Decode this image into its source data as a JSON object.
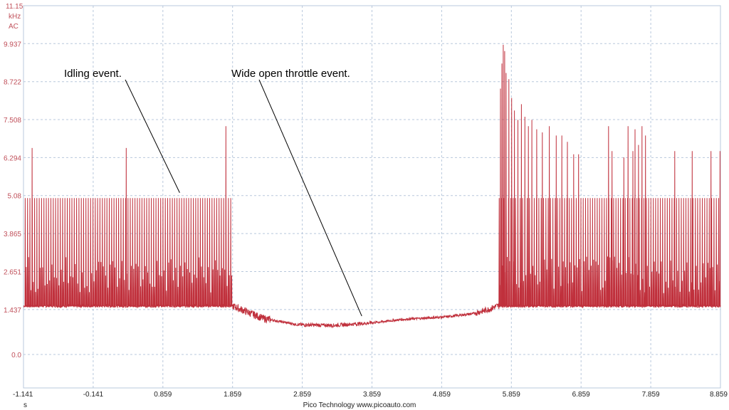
{
  "chart_data": {
    "type": "line",
    "title": "",
    "y_unit_lines": [
      "11.15",
      "kHz",
      "AC"
    ],
    "y_ticks": [
      "9.937",
      "8.722",
      "7.508",
      "6.294",
      "5.08",
      "3.865",
      "2.651",
      "1.437",
      "0.0"
    ],
    "y_tick_values": [
      9.937,
      8.722,
      7.508,
      6.294,
      5.08,
      3.865,
      2.651,
      1.437,
      0.0
    ],
    "x_ticks": [
      "-1.141",
      "-0.141",
      "0.859",
      "1.859",
      "2.859",
      "3.859",
      "4.859",
      "5.859",
      "6.859",
      "7.859",
      "8.859"
    ],
    "x_tick_values": [
      -1.141,
      -0.141,
      0.859,
      1.859,
      2.859,
      3.859,
      4.859,
      5.859,
      6.859,
      7.859,
      8.859
    ],
    "xlabel": "s",
    "xlim": [
      -1.141,
      8.859
    ],
    "ylim": [
      -1.07,
      11.15
    ],
    "grid": true,
    "line_color": "#c0303c",
    "grid_color": "#b8c8dc",
    "series": [
      {
        "baseline": [
          [
            -1.141,
            1.55
          ],
          [
            1.859,
            1.55
          ],
          [
            2.3,
            1.15
          ],
          [
            2.8,
            0.95
          ],
          [
            3.3,
            0.93
          ],
          [
            3.8,
            1.0
          ],
          [
            4.3,
            1.12
          ],
          [
            4.9,
            1.2
          ],
          [
            5.3,
            1.3
          ],
          [
            5.55,
            1.45
          ],
          [
            5.65,
            1.55
          ],
          [
            8.859,
            1.55
          ]
        ],
        "regular_spikes": [
          {
            "x_start": -1.12,
            "x_end": 1.84,
            "period": 0.0335,
            "peak": 5.0
          },
          {
            "x_start": 5.68,
            "x_end": 8.84,
            "period": 0.0335,
            "peak": 5.0
          }
        ],
        "tall_spikes": [
          [
            -1.02,
            6.6
          ],
          [
            0.33,
            6.6
          ],
          [
            1.76,
            7.3
          ],
          [
            5.7,
            8.5
          ],
          [
            5.72,
            9.3
          ],
          [
            5.74,
            9.9
          ],
          [
            5.76,
            9.7
          ],
          [
            5.78,
            9.0
          ],
          [
            5.82,
            8.8
          ],
          [
            5.86,
            8.2
          ],
          [
            5.9,
            7.8
          ],
          [
            5.95,
            7.5
          ],
          [
            6.0,
            8.0
          ],
          [
            6.05,
            7.6
          ],
          [
            6.1,
            7.3
          ],
          [
            6.15,
            7.5
          ],
          [
            6.22,
            7.2
          ],
          [
            6.3,
            7.1
          ],
          [
            6.4,
            7.3
          ],
          [
            6.5,
            7.0
          ],
          [
            6.58,
            7.0
          ],
          [
            6.66,
            6.8
          ],
          [
            6.75,
            6.4
          ],
          [
            6.82,
            6.4
          ],
          [
            7.25,
            7.3
          ],
          [
            7.3,
            6.5
          ],
          [
            7.47,
            6.3
          ],
          [
            7.53,
            7.3
          ],
          [
            7.6,
            6.5
          ],
          [
            7.63,
            7.2
          ],
          [
            7.68,
            6.7
          ],
          [
            7.73,
            7.3
          ],
          [
            7.78,
            7.0
          ],
          [
            8.2,
            6.5
          ],
          [
            8.45,
            6.5
          ],
          [
            8.72,
            6.5
          ],
          [
            8.85,
            6.5
          ]
        ],
        "ripple_zones": [
          {
            "x_start": 1.86,
            "x_end": 2.4,
            "amplitude": 0.12
          },
          {
            "x_start": 2.8,
            "x_end": 3.85,
            "amplitude": 0.06
          },
          {
            "x_start": 5.35,
            "x_end": 5.68,
            "amplitude": 0.1
          }
        ]
      }
    ],
    "annotations": [
      {
        "text": "Idling event.",
        "pointer_to": [
          1.1,
          5.08
        ]
      },
      {
        "text": "Wide open throttle event.",
        "pointer_to": [
          3.1,
          1.0
        ]
      }
    ],
    "footer": "Pico Technology   www.picoauto.com"
  }
}
